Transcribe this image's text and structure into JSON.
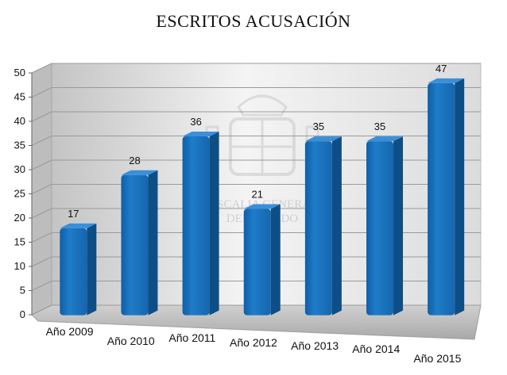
{
  "chart_data": {
    "type": "bar",
    "title": "ESCRITOS ACUSACIÓN",
    "categories": [
      "Año 2009",
      "Año 2010",
      "Año 2011",
      "Año 2012",
      "Año 2013",
      "Año 2014",
      "Año 2015"
    ],
    "values": [
      17,
      28,
      36,
      21,
      35,
      35,
      47
    ],
    "ylim": [
      0,
      50
    ],
    "yticks": [
      0,
      5,
      10,
      15,
      20,
      25,
      30,
      35,
      40,
      45,
      50
    ],
    "grid": true,
    "style": "3d-column",
    "colors": {
      "bar": "#1E73BE",
      "bar_light": "#3A8FD8",
      "bar_dark": "#0E4E86",
      "wall": "#D9D9D9",
      "floor": "#C8C8C8"
    }
  },
  "watermark": {
    "line1": "FISCALIA GENERAL",
    "line2": "DEL ESTADO",
    "icon": "coat-of-arms-icon"
  }
}
